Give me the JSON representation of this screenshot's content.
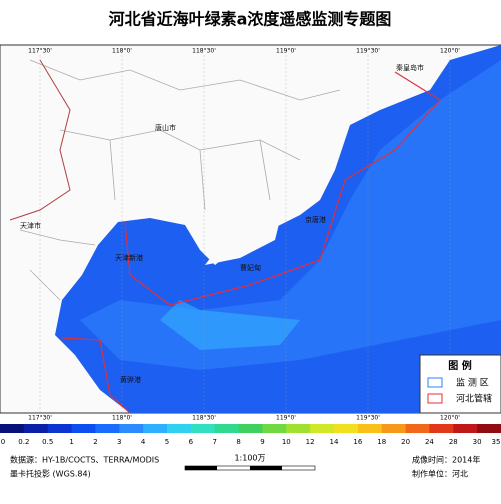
{
  "header": {
    "title": "河北省近海叶绿素a浓度遥感监测专题图"
  },
  "map": {
    "lon_labels": [
      "117°30'",
      "118°0'",
      "118°30'",
      "119°0'",
      "119°30'",
      "120°0'"
    ],
    "places": [
      "秦皇岛市",
      "唐山市",
      "天津市",
      "天津新港",
      "京唐港",
      "曹妃甸",
      "黄骅港"
    ]
  },
  "legend": {
    "title": "图 例",
    "items": [
      "监 测 区",
      "河北管辖"
    ]
  },
  "colorbar": {
    "labels": [
      0,
      0.2,
      0.5,
      1,
      2,
      3,
      4,
      5,
      6,
      7,
      8,
      9,
      10,
      12,
      14,
      16,
      18,
      20,
      24,
      28,
      30,
      35
    ],
    "colors": [
      "#08107a",
      "#0a1fa8",
      "#0b34d0",
      "#0d4ef0",
      "#1a6cff",
      "#2a8cff",
      "#2fb0ff",
      "#30d0f0",
      "#30e0c0",
      "#30d890",
      "#40d060",
      "#70d840",
      "#a0e030",
      "#d0e828",
      "#f0e020",
      "#f8c018",
      "#f89818",
      "#f06818",
      "#e03818",
      "#c01818",
      "#900c10"
    ]
  },
  "footer": {
    "source": "数据源：HY-1B/COCTS、TERRA/MODIS",
    "projection": "墨卡托投影 (WGS.84)",
    "scale": "1:100万",
    "time": "成像时间：2014年",
    "unit": "制作单位：河北"
  }
}
